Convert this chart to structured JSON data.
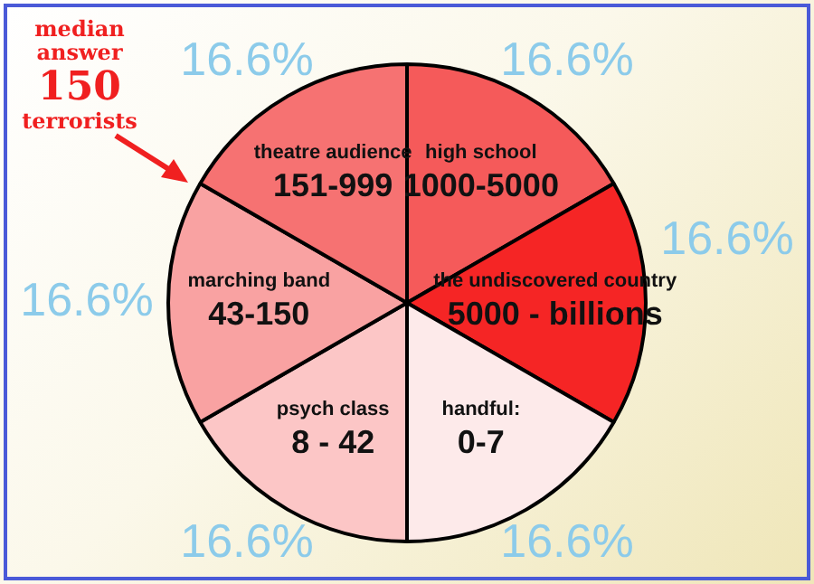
{
  "chart_data": {
    "type": "pie",
    "categories": [
      "high school\n1000-5000",
      "the undiscovered country\n5000 - billions",
      "handful:\n0-7",
      "psych class\n8 - 42",
      "marching band\n43-150",
      "theatre audience\n151-999"
    ],
    "values": [
      16.6,
      16.6,
      16.6,
      16.6,
      16.6,
      16.6
    ],
    "value_labels": [
      "16.6%",
      "16.6%",
      "16.6%",
      "16.6%",
      "16.6%",
      "16.6%"
    ],
    "colors": [
      "#f55a5a",
      "#f52525",
      "#fdeaea",
      "#fcc6c6",
      "#f9a2a2",
      "#f67272"
    ],
    "annotations": [
      "median\nanswer\n150\nterrorists"
    ],
    "legend": false
  }
}
